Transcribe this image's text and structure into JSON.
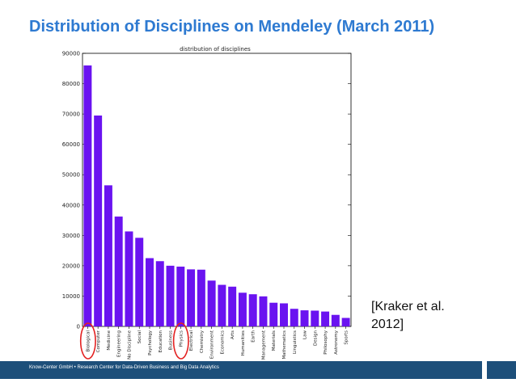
{
  "slide": {
    "title": "Distribution of Disciplines on Mendeley (March 2011)",
    "citation_line1": "[Kraker et al.",
    "citation_line2": "2012]",
    "footer": "Know-Center GmbH • Research Center for Data-Driven Business and Big Data Analytics"
  },
  "colors": {
    "title": "#2e7ad1",
    "bar": "#6a13f0",
    "footer_bar": "#1d4f7a",
    "highlight_circle": "#e32222"
  },
  "chart_data": {
    "type": "bar",
    "title": "distribution of disciplines",
    "xlabel": "",
    "ylabel": "",
    "ylim": [
      0,
      90000
    ],
    "yticks": [
      0,
      10000,
      20000,
      30000,
      40000,
      50000,
      60000,
      70000,
      80000,
      90000
    ],
    "grid": false,
    "categories": [
      "Biological",
      "Computer",
      "Medicine",
      "Engineering",
      "No Discipline",
      "Social",
      "Psychology",
      "Education",
      "Business",
      "Physics",
      "Electrical",
      "Chemistry",
      "Environment",
      "Economics",
      "Arts",
      "Humanities",
      "Earth",
      "Management",
      "Materials",
      "Mathematics",
      "Linguistics",
      "Law",
      "Design",
      "Philosophy",
      "Astronomy",
      "Sports"
    ],
    "values": [
      86000,
      69500,
      46500,
      36200,
      31300,
      29200,
      22500,
      21500,
      20000,
      19700,
      18800,
      18700,
      15100,
      13700,
      13100,
      11100,
      10600,
      9900,
      7800,
      7600,
      5800,
      5300,
      5200,
      4900,
      3800,
      2800
    ],
    "highlighted": [
      "Biological",
      "Physics"
    ]
  }
}
